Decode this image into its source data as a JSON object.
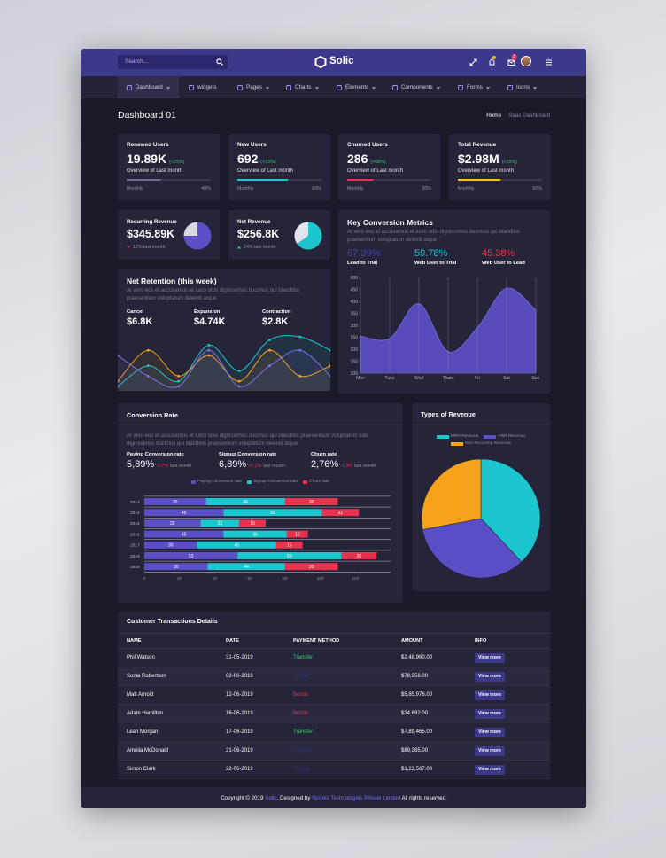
{
  "header": {
    "search_placeholder": "Search...",
    "brand": "Solic",
    "mail_badge": "3"
  },
  "nav": {
    "items": [
      {
        "label": "Dashboard",
        "dropdown": true,
        "active": true
      },
      {
        "label": "widgets",
        "dropdown": false,
        "active": false
      },
      {
        "label": "Pages",
        "dropdown": true,
        "active": false
      },
      {
        "label": "Charts",
        "dropdown": true,
        "active": false
      },
      {
        "label": "Elements",
        "dropdown": true,
        "active": false
      },
      {
        "label": "Components",
        "dropdown": true,
        "active": false
      },
      {
        "label": "Forms",
        "dropdown": true,
        "active": false
      },
      {
        "label": "Icons",
        "dropdown": true,
        "active": false
      }
    ]
  },
  "page_header": {
    "title": "Dashboard 01",
    "breadcrumb": [
      "Home",
      "Saas Dashboard"
    ]
  },
  "stats": [
    {
      "title": "Renewed Users",
      "value": "19.89K",
      "change": "(+25%)",
      "subtitle": "Overview of Last month",
      "period": "Monthly",
      "progress": 40,
      "progress_label": "40%",
      "color": "#6f6a9e"
    },
    {
      "title": "New Users",
      "value": "692",
      "change": "(+15%)",
      "subtitle": "Overview of Last month",
      "period": "Monthly",
      "progress": 60,
      "progress_label": "60%",
      "color": "#1cc6cf"
    },
    {
      "title": "Churned Users",
      "value": "286",
      "change": "(+08%)",
      "subtitle": "Overview of Last month",
      "period": "Monthly",
      "progress": 30,
      "progress_label": "30%",
      "color": "#e8334f"
    },
    {
      "title": "Total Revenue",
      "value": "$2.98M",
      "change": "(+35%)",
      "subtitle": "Overview of Last month",
      "period": "Monthly",
      "progress": 50,
      "progress_label": "50%",
      "color": "#f4c21b"
    }
  ],
  "small_cards": [
    {
      "title": "Recurring Revenue",
      "value": "$345.89K",
      "change": "12% last month",
      "change_color": "#e8334f",
      "pie": {
        "values": [
          75,
          25
        ],
        "colors": [
          "#5b4fc7",
          "#d9d9e2"
        ]
      }
    },
    {
      "title": "Net Revenue",
      "value": "$256.8K",
      "change": "24% last month",
      "change_color": "#2ecc71",
      "pie": {
        "values": [
          65,
          35
        ],
        "colors": [
          "#1cc6cf",
          "#e4e4ec"
        ]
      }
    }
  ],
  "key_conversion": {
    "title": "Key Conversion Metrics",
    "description": "At vero eos et accusamus et iusto odio dignissimos ducimus qui blanditiis praesentium voluptatum deleniti atque",
    "metrics": [
      {
        "value": "67.39%",
        "label": "Lead to Trial",
        "color": "#4b43a6"
      },
      {
        "value": "59.78%",
        "label": "Web User to Trial",
        "color": "#1cc6cf"
      },
      {
        "value": "45.38%",
        "label": "Web User to Lead",
        "color": "#e8334f"
      }
    ],
    "chart": {
      "type": "area",
      "categories": [
        "Mon",
        "Tues",
        "Wed",
        "Thurs",
        "Fri",
        "Sat",
        "Sun"
      ],
      "values": [
        255,
        245,
        390,
        190,
        290,
        455,
        363
      ],
      "color": "#5b4fc7",
      "ylim": [
        100,
        500
      ],
      "yticks": [
        100,
        150,
        200,
        250,
        300,
        350,
        400,
        450,
        500
      ],
      "grid": true
    }
  },
  "net_retention": {
    "title": "Net Retention (this week)",
    "description": "At vero eos et accusamus et iusto odio dignissimos ducimus qui blanditiis praesentium voluptatum deleniti atque",
    "metrics": [
      {
        "label": "Cancel",
        "value": "$6.8K"
      },
      {
        "label": "Expansion",
        "value": "$4.74K"
      },
      {
        "label": "Contraction",
        "value": "$2.8K"
      }
    ],
    "chart": {
      "type": "line",
      "series": [
        {
          "color": "#1cc6cf",
          "values": [
            10,
            30,
            15,
            50,
            25,
            55,
            58,
            45
          ]
        },
        {
          "color": "#f7a21b",
          "values": [
            15,
            45,
            20,
            40,
            15,
            45,
            20,
            30
          ]
        },
        {
          "color": "#7b6ff0",
          "values": [
            40,
            20,
            10,
            45,
            10,
            30,
            45,
            20
          ]
        }
      ]
    }
  },
  "conversion_rate": {
    "title": "Conversion Rate",
    "description": "At vero eos et accusamus et iusto odio dignissimos ducimus qui blanditiis praesentium voluptatum odio dignissimos ducimus qui blanditiis praesentium voluptatum deleniti atque",
    "metrics": [
      {
        "label": "Paying Conversion rate",
        "value": "5,89%",
        "change": "-0.7%",
        "suffix": "last month"
      },
      {
        "label": "Signup Conversion rate",
        "value": "6,89%",
        "change": "+0.2%",
        "suffix": "last month"
      },
      {
        "label": "Churn rate",
        "value": "2,76%",
        "change": "-1.3%",
        "suffix": "last month"
      }
    ],
    "chart": {
      "type": "bar",
      "orientation": "horizontal",
      "stacked": true,
      "categories": [
        "2013",
        "2014",
        "2015",
        "2016",
        "2017",
        "2018",
        "2019"
      ],
      "series": [
        {
          "name": "Paying Conversion rate",
          "color": "#5b4fc7",
          "values": [
            35,
            45,
            32,
            45,
            30,
            53,
            36
          ]
        },
        {
          "name": "Signup Conversion rate",
          "color": "#1cc6cf",
          "values": [
            45,
            56,
            22,
            36,
            45,
            59,
            44
          ]
        },
        {
          "name": "Churn rate",
          "color": "#e8334f",
          "values": [
            30,
            21,
            15,
            12,
            15,
            20,
            30
          ]
        }
      ],
      "xlim": [
        0,
        140
      ],
      "xticks": [
        0,
        20,
        40,
        60,
        80,
        100,
        120
      ]
    }
  },
  "revenue_types": {
    "title": "Types of Revenue",
    "chart": {
      "type": "pie",
      "series": [
        {
          "name": "MRR Revenue",
          "color": "#1cc6cf",
          "value": 38
        },
        {
          "name": "ARR Revenue",
          "color": "#5b4fc7",
          "value": 34
        },
        {
          "name": "Non-Recurring Revenue",
          "color": "#f7a21b",
          "value": 28
        }
      ]
    }
  },
  "transactions": {
    "title": "Customer Transactions Details",
    "columns": [
      "NAME",
      "DATE",
      "PAYMENT METHOD",
      "AMOUNT",
      "INFO"
    ],
    "rows": [
      [
        "Phil Watson",
        "31-05-2019",
        "Transfer",
        "$2,48,960.00",
        "View more"
      ],
      [
        "Sonia Robertson",
        "02-06-2019",
        "Paypal",
        "$78,956.00",
        "View more"
      ],
      [
        "Matt Arnold",
        "12-06-2019",
        "Bonds",
        "$5,85,976.00",
        "View more"
      ],
      [
        "Adam Hamilton",
        "16-06-2019",
        "Bonds",
        "$34,692.00",
        "View more"
      ],
      [
        "Leah Morgan",
        "17-06-2019",
        "Transfer",
        "$7,89,465.00",
        "View more"
      ],
      [
        "Amelia McDonald",
        "21-06-2019",
        "Paypal",
        "$89,365.00",
        "View more"
      ],
      [
        "Simon Clark",
        "22-06-2019",
        "Paypal",
        "$1,23,567.00",
        "View more"
      ]
    ],
    "method_colors": [
      "#2ecc71",
      "#34317a",
      "#e8334f",
      "#e8334f",
      "#2ecc71",
      "#34317a",
      "#34317a"
    ]
  },
  "footer": {
    "parts": [
      "Copyright © 2019 ",
      "Solic",
      ". Designed by ",
      "Spruko Technologies Private Limited",
      " All rights reserved."
    ]
  }
}
